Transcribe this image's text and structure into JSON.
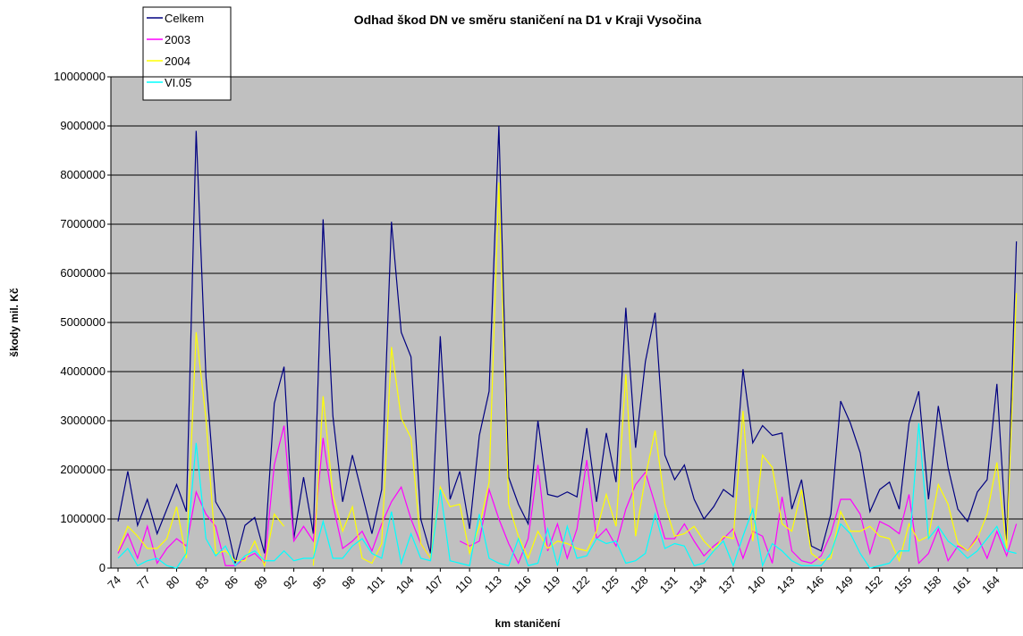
{
  "chart_data": {
    "type": "line",
    "title": "Odhad škod DN ve směru staničení na D1 v Kraji Vysočina",
    "x_label": "km staničení",
    "y_label": "škody mil. Kč",
    "ylim": [
      0,
      10000000
    ],
    "yticks": [
      0,
      1000000,
      2000000,
      3000000,
      4000000,
      5000000,
      6000000,
      7000000,
      8000000,
      9000000,
      10000000
    ],
    "grid": true,
    "legend": "top-left",
    "categories": [
      "74",
      null,
      null,
      "77",
      null,
      null,
      "80",
      null,
      null,
      "83",
      null,
      null,
      "86",
      null,
      null,
      "89",
      null,
      null,
      "92",
      null,
      null,
      "95",
      null,
      null,
      "98",
      null,
      null,
      "101",
      null,
      null,
      "104",
      null,
      null,
      "107",
      null,
      null,
      "110",
      null,
      null,
      "113",
      null,
      null,
      "116",
      null,
      null,
      "119",
      null,
      null,
      "122",
      null,
      null,
      "125",
      null,
      null,
      "128",
      null,
      null,
      "131",
      null,
      null,
      "134",
      null,
      null,
      "137",
      null,
      null,
      "140",
      null,
      null,
      "143",
      null,
      null,
      "146",
      null,
      null,
      "149",
      null,
      null,
      "152",
      null,
      null,
      "155",
      null,
      null,
      "158",
      null,
      null,
      "161",
      null,
      null,
      "164",
      null,
      null
    ],
    "series": [
      {
        "name": "Celkem",
        "color": "#000080",
        "values": [
          950000,
          1970000,
          870000,
          1400000,
          700000,
          1200000,
          1700000,
          1150000,
          8900000,
          3900000,
          1350000,
          1000000,
          100000,
          870000,
          1030000,
          300000,
          3350000,
          4100000,
          600000,
          1850000,
          700000,
          7100000,
          3100000,
          1350000,
          2300000,
          1500000,
          700000,
          1600000,
          7050000,
          4800000,
          4300000,
          1000000,
          300000,
          4720000,
          1400000,
          1970000,
          800000,
          2700000,
          3600000,
          9000000,
          1850000,
          1300000,
          900000,
          3000000,
          1500000,
          1450000,
          1550000,
          1450000,
          2850000,
          1350000,
          2750000,
          1750000,
          5300000,
          2450000,
          4200000,
          5200000,
          2300000,
          1800000,
          2100000,
          1400000,
          1000000,
          1250000,
          1600000,
          1450000,
          4050000,
          2550000,
          2900000,
          2700000,
          2750000,
          1200000,
          1800000,
          450000,
          350000,
          1100000,
          3400000,
          2950000,
          2350000,
          1150000,
          1600000,
          1750000,
          1200000,
          2950000,
          3600000,
          1400000,
          3300000,
          2050000,
          1200000,
          950000,
          1550000,
          1800000,
          3750000,
          550000,
          6650000
        ]
      },
      {
        "name": "2003",
        "color": "#ff00ff",
        "values": [
          300000,
          700000,
          200000,
          850000,
          100000,
          400000,
          600000,
          450000,
          1550000,
          1100000,
          850000,
          50000,
          50000,
          200000,
          300000,
          100000,
          2100000,
          2900000,
          550000,
          850000,
          550000,
          2650000,
          1300000,
          400000,
          550000,
          750000,
          350000,
          900000,
          1350000,
          1650000,
          1000000,
          500000,
          200000,
          null,
          null,
          550000,
          450000,
          550000,
          1600000,
          1000000,
          500000,
          100000,
          600000,
          2100000,
          350000,
          900000,
          200000,
          800000,
          2200000,
          600000,
          800000,
          450000,
          1200000,
          1700000,
          1950000,
          1300000,
          600000,
          600000,
          900000,
          550000,
          250000,
          450000,
          600000,
          800000,
          200000,
          750000,
          650000,
          100000,
          1450000,
          350000,
          150000,
          100000,
          250000,
          700000,
          1400000,
          1400000,
          1100000,
          300000,
          950000,
          850000,
          700000,
          1500000,
          100000,
          300000,
          800000,
          150000,
          450000,
          350000,
          650000,
          200000,
          750000,
          250000,
          900000
        ]
      },
      {
        "name": "2004",
        "color": "#ffff00",
        "values": [
          350000,
          850000,
          650000,
          400000,
          400000,
          600000,
          1250000,
          200000,
          4800000,
          3050000,
          300000,
          350000,
          150000,
          150000,
          550000,
          50000,
          1100000,
          850000,
          null,
          null,
          50000,
          3500000,
          1500000,
          750000,
          1250000,
          200000,
          100000,
          500000,
          4500000,
          3050000,
          2650000,
          500000,
          200000,
          1650000,
          1250000,
          1300000,
          300000,
          850000,
          1750000,
          7850000,
          1300000,
          650000,
          200000,
          750000,
          400000,
          550000,
          500000,
          400000,
          350000,
          750000,
          1500000,
          850000,
          3950000,
          650000,
          1850000,
          2800000,
          1300000,
          650000,
          700000,
          850000,
          550000,
          350000,
          650000,
          600000,
          3200000,
          550000,
          2300000,
          2050000,
          900000,
          750000,
          1600000,
          300000,
          150000,
          200000,
          1150000,
          750000,
          750000,
          850000,
          650000,
          600000,
          150000,
          900000,
          550000,
          650000,
          1700000,
          1300000,
          500000,
          350000,
          600000,
          1100000,
          2150000,
          400000,
          5600000
        ]
      },
      {
        "name": "VI.05",
        "color": "#00ffff",
        "values": [
          200000,
          400000,
          50000,
          150000,
          200000,
          50000,
          0,
          300000,
          2550000,
          600000,
          250000,
          450000,
          50000,
          250000,
          350000,
          150000,
          150000,
          350000,
          150000,
          200000,
          200000,
          950000,
          200000,
          200000,
          450000,
          600000,
          300000,
          200000,
          1150000,
          100000,
          700000,
          200000,
          150000,
          1600000,
          150000,
          100000,
          50000,
          1100000,
          200000,
          100000,
          50000,
          600000,
          50000,
          100000,
          800000,
          50000,
          850000,
          200000,
          250000,
          600000,
          500000,
          550000,
          100000,
          150000,
          300000,
          1100000,
          400000,
          500000,
          450000,
          50000,
          100000,
          350000,
          550000,
          50000,
          650000,
          1200000,
          50000,
          500000,
          350000,
          150000,
          50000,
          50000,
          50000,
          300000,
          900000,
          700000,
          300000,
          0,
          50000,
          100000,
          350000,
          350000,
          2950000,
          600000,
          850000,
          550000,
          400000,
          200000,
          350000,
          600000,
          850000,
          350000,
          300000
        ]
      }
    ]
  }
}
